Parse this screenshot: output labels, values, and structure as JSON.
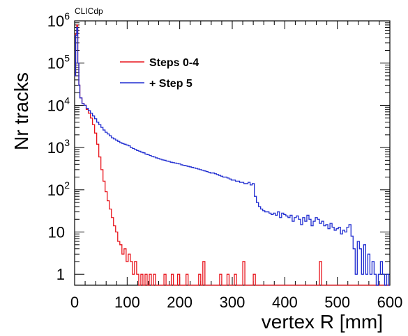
{
  "chart_data": {
    "type": "histogram-step",
    "watermark": "CLICdp",
    "xlabel": "vertex R [mm]",
    "ylabel": "Nr tracks",
    "xlim": [
      0,
      600
    ],
    "ylim": [
      0.55,
      1000000
    ],
    "ylog": true,
    "grid": false,
    "legend_placement": "top-left",
    "x_ticks": [
      "0",
      "100",
      "200",
      "300",
      "400",
      "500",
      "600"
    ],
    "y_ticks": [
      {
        "value": 1000000,
        "base": "10",
        "exp": "6"
      },
      {
        "value": 100000,
        "base": "10",
        "exp": "5"
      },
      {
        "value": 10000,
        "base": "10",
        "exp": "4"
      },
      {
        "value": 1000,
        "base": "10",
        "exp": "3"
      },
      {
        "value": 100,
        "base": "10",
        "exp": "2"
      },
      {
        "value": 10,
        "base": "10",
        "exp": ""
      },
      {
        "value": 1,
        "base": "1",
        "exp": ""
      }
    ],
    "series": [
      {
        "name": "Steps 0-4",
        "color": "#e8141c",
        "points": [
          [
            0,
            50000
          ],
          [
            2,
            500000
          ],
          [
            4,
            800000
          ],
          [
            6,
            100000
          ],
          [
            8,
            30000
          ],
          [
            10,
            15000
          ],
          [
            14,
            11000
          ],
          [
            18,
            10000
          ],
          [
            22,
            8000
          ],
          [
            26,
            6500
          ],
          [
            30,
            5000
          ],
          [
            34,
            3500
          ],
          [
            38,
            2200
          ],
          [
            42,
            1200
          ],
          [
            46,
            600
          ],
          [
            50,
            300
          ],
          [
            54,
            160
          ],
          [
            58,
            90
          ],
          [
            62,
            55
          ],
          [
            66,
            35
          ],
          [
            70,
            22
          ],
          [
            74,
            14
          ],
          [
            78,
            10
          ],
          [
            82,
            6
          ],
          [
            86,
            5
          ],
          [
            90,
            3
          ],
          [
            94,
            4
          ],
          [
            98,
            2
          ],
          [
            102,
            3
          ],
          [
            106,
            2
          ],
          [
            110,
            1
          ],
          [
            114,
            2
          ],
          [
            118,
            1
          ],
          [
            122,
            0.55
          ],
          [
            126,
            1
          ],
          [
            130,
            0.55
          ],
          [
            134,
            1
          ],
          [
            138,
            0.55
          ],
          [
            142,
            1
          ],
          [
            146,
            0.55
          ],
          [
            150,
            1
          ],
          [
            154,
            0.55
          ],
          [
            170,
            1
          ],
          [
            174,
            0.55
          ],
          [
            184,
            1
          ],
          [
            188,
            0.55
          ],
          [
            196,
            1
          ],
          [
            200,
            0.55
          ],
          [
            212,
            1
          ],
          [
            216,
            0.55
          ],
          [
            236,
            1
          ],
          [
            240,
            0.55
          ],
          [
            244,
            2
          ],
          [
            248,
            0.55
          ],
          [
            276,
            1
          ],
          [
            280,
            0.55
          ],
          [
            290,
            1
          ],
          [
            294,
            0.55
          ],
          [
            304,
            1
          ],
          [
            308,
            0.55
          ],
          [
            320,
            2
          ],
          [
            324,
            0.55
          ],
          [
            340,
            1
          ],
          [
            344,
            0.55
          ],
          [
            466,
            2
          ],
          [
            470,
            0.55
          ],
          [
            600,
            0.55
          ]
        ]
      },
      {
        "name": "+ Step 5",
        "color": "#1e2bd0",
        "points": [
          [
            0,
            50000
          ],
          [
            2,
            450000
          ],
          [
            4,
            700000
          ],
          [
            6,
            100000
          ],
          [
            8,
            30000
          ],
          [
            10,
            15000
          ],
          [
            14,
            11000
          ],
          [
            18,
            10000
          ],
          [
            22,
            8500
          ],
          [
            26,
            7500
          ],
          [
            30,
            6500
          ],
          [
            34,
            5600
          ],
          [
            38,
            4800
          ],
          [
            42,
            4000
          ],
          [
            46,
            3500
          ],
          [
            50,
            3000
          ],
          [
            54,
            2600
          ],
          [
            58,
            2300
          ],
          [
            62,
            2100
          ],
          [
            66,
            1900
          ],
          [
            70,
            1700
          ],
          [
            74,
            1600
          ],
          [
            78,
            1500
          ],
          [
            82,
            1400
          ],
          [
            86,
            1300
          ],
          [
            90,
            1250
          ],
          [
            94,
            1200
          ],
          [
            98,
            1150
          ],
          [
            102,
            1100
          ],
          [
            106,
            1000
          ],
          [
            110,
            950
          ],
          [
            114,
            900
          ],
          [
            118,
            850
          ],
          [
            122,
            820
          ],
          [
            126,
            780
          ],
          [
            130,
            750
          ],
          [
            134,
            700
          ],
          [
            138,
            680
          ],
          [
            142,
            650
          ],
          [
            146,
            620
          ],
          [
            150,
            600
          ],
          [
            154,
            570
          ],
          [
            158,
            550
          ],
          [
            162,
            530
          ],
          [
            166,
            510
          ],
          [
            170,
            500
          ],
          [
            174,
            480
          ],
          [
            178,
            470
          ],
          [
            182,
            450
          ],
          [
            186,
            440
          ],
          [
            190,
            430
          ],
          [
            194,
            420
          ],
          [
            198,
            410
          ],
          [
            202,
            390
          ],
          [
            206,
            380
          ],
          [
            210,
            370
          ],
          [
            214,
            360
          ],
          [
            218,
            350
          ],
          [
            222,
            340
          ],
          [
            226,
            330
          ],
          [
            230,
            320
          ],
          [
            234,
            310
          ],
          [
            238,
            300
          ],
          [
            242,
            290
          ],
          [
            246,
            280
          ],
          [
            250,
            270
          ],
          [
            254,
            260
          ],
          [
            258,
            250
          ],
          [
            262,
            250
          ],
          [
            266,
            240
          ],
          [
            270,
            230
          ],
          [
            274,
            220
          ],
          [
            278,
            210
          ],
          [
            282,
            200
          ],
          [
            286,
            200
          ],
          [
            290,
            190
          ],
          [
            294,
            180
          ],
          [
            298,
            170
          ],
          [
            302,
            170
          ],
          [
            306,
            160
          ],
          [
            310,
            160
          ],
          [
            314,
            150
          ],
          [
            318,
            150
          ],
          [
            322,
            140
          ],
          [
            326,
            140
          ],
          [
            330,
            150
          ],
          [
            334,
            130
          ],
          [
            338,
            140
          ],
          [
            342,
            70
          ],
          [
            346,
            50
          ],
          [
            350,
            40
          ],
          [
            354,
            35
          ],
          [
            358,
            32
          ],
          [
            362,
            30
          ],
          [
            366,
            30
          ],
          [
            370,
            28
          ],
          [
            374,
            26
          ],
          [
            378,
            28
          ],
          [
            382,
            25
          ],
          [
            386,
            30
          ],
          [
            390,
            22
          ],
          [
            394,
            28
          ],
          [
            398,
            26
          ],
          [
            402,
            24
          ],
          [
            406,
            22
          ],
          [
            410,
            25
          ],
          [
            414,
            18
          ],
          [
            418,
            22
          ],
          [
            422,
            24
          ],
          [
            426,
            20
          ],
          [
            430,
            15
          ],
          [
            434,
            22
          ],
          [
            438,
            18
          ],
          [
            442,
            25
          ],
          [
            446,
            20
          ],
          [
            450,
            14
          ],
          [
            454,
            18
          ],
          [
            458,
            22
          ],
          [
            462,
            20
          ],
          [
            466,
            16
          ],
          [
            470,
            18
          ],
          [
            474,
            14
          ],
          [
            478,
            15
          ],
          [
            482,
            12
          ],
          [
            486,
            16
          ],
          [
            490,
            13
          ],
          [
            494,
            11
          ],
          [
            498,
            12
          ],
          [
            502,
            13
          ],
          [
            506,
            9
          ],
          [
            510,
            11
          ],
          [
            514,
            10
          ],
          [
            518,
            13
          ],
          [
            522,
            15
          ],
          [
            526,
            8
          ],
          [
            530,
            4
          ],
          [
            534,
            1
          ],
          [
            538,
            6
          ],
          [
            542,
            4
          ],
          [
            546,
            1
          ],
          [
            550,
            5
          ],
          [
            554,
            1
          ],
          [
            558,
            3
          ],
          [
            562,
            1
          ],
          [
            566,
            2
          ],
          [
            570,
            1
          ],
          [
            574,
            0.55
          ],
          [
            578,
            1
          ],
          [
            582,
            2
          ],
          [
            586,
            1
          ],
          [
            590,
            0.55
          ],
          [
            594,
            1
          ],
          [
            598,
            0.55
          ],
          [
            600,
            0.55
          ]
        ]
      }
    ]
  }
}
